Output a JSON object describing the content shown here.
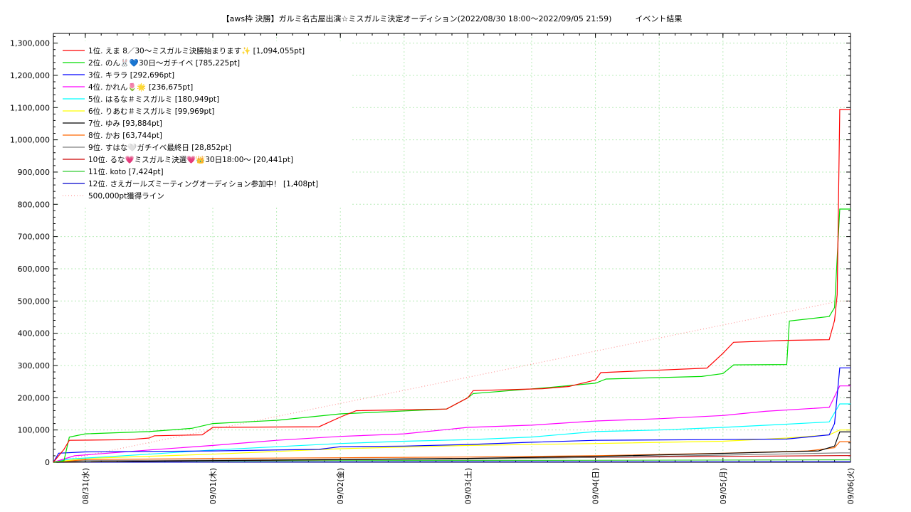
{
  "chart_data": {
    "type": "line",
    "title": "【aws枠 決勝】ガルミ名古屋出演☆ミスガルミ決定オーディション(2022/08/30 18:00〜2022/09/05 21:59)　　　イベント結果",
    "ylim": [
      0,
      1330000
    ],
    "xlim": [
      "2022-08-30 18:00",
      "2022-09-06 00:00"
    ],
    "grid": true,
    "legend_position": "top-left",
    "y_ticks": [
      "0",
      "100,000",
      "200,000",
      "300,000",
      "400,000",
      "500,000",
      "600,000",
      "700,000",
      "800,000",
      "900,000",
      "1,000,000",
      "1,100,000",
      "1,200,000",
      "1,300,000"
    ],
    "x_ticks": [
      {
        "label": "08/31(水)",
        "x": "2022-08-31 00:00"
      },
      {
        "label": "09/01(木)",
        "x": "2022-09-01 00:00"
      },
      {
        "label": "09/02(金)",
        "x": "2022-09-02 00:00"
      },
      {
        "label": "09/03(土)",
        "x": "2022-09-03 00:00"
      },
      {
        "label": "09/04(日)",
        "x": "2022-09-04 00:00"
      },
      {
        "label": "09/05(月)",
        "x": "2022-09-05 00:00"
      },
      {
        "label": "09/06(火)",
        "x": "2022-09-06 00:00"
      }
    ],
    "series": [
      {
        "name": "1位. えま 8／30〜ミスガルミ決勝始まります✨ [1,094,055pt]",
        "color": "#ff0000",
        "dash": false,
        "points": [
          [
            "2022-08-30 18:00",
            0
          ],
          [
            "2022-08-30 20:00",
            40000
          ],
          [
            "2022-08-30 21:00",
            68000
          ],
          [
            "2022-08-31 08:00",
            70000
          ],
          [
            "2022-08-31 12:00",
            75000
          ],
          [
            "2022-08-31 13:00",
            82000
          ],
          [
            "2022-08-31 22:00",
            85000
          ],
          [
            "2022-09-01 00:00",
            108000
          ],
          [
            "2022-09-01 20:00",
            110000
          ],
          [
            "2022-09-02 00:00",
            140000
          ],
          [
            "2022-09-02 03:00",
            160000
          ],
          [
            "2022-09-02 20:00",
            165000
          ],
          [
            "2022-09-03 00:00",
            200000
          ],
          [
            "2022-09-03 01:00",
            222000
          ],
          [
            "2022-09-03 14:00",
            228000
          ],
          [
            "2022-09-03 19:00",
            235000
          ],
          [
            "2022-09-04 00:00",
            255000
          ],
          [
            "2022-09-04 01:00",
            278000
          ],
          [
            "2022-09-04 21:00",
            292000
          ],
          [
            "2022-09-05 00:00",
            338000
          ],
          [
            "2022-09-05 02:00",
            372000
          ],
          [
            "2022-09-05 12:00",
            378000
          ],
          [
            "2022-09-05 20:00",
            380000
          ],
          [
            "2022-09-05 21:00",
            440000
          ],
          [
            "2022-09-05 21:30",
            520000
          ],
          [
            "2022-09-05 21:59",
            1094055
          ],
          [
            "2022-09-06 00:00",
            1094055
          ]
        ]
      },
      {
        "name": "2位. のん🐰💙30日〜ガチイベ [785,225pt]",
        "color": "#00dd00",
        "dash": false,
        "points": [
          [
            "2022-08-30 18:00",
            0
          ],
          [
            "2022-08-30 20:00",
            5000
          ],
          [
            "2022-08-30 21:00",
            78000
          ],
          [
            "2022-08-31 00:00",
            88000
          ],
          [
            "2022-08-31 12:00",
            95000
          ],
          [
            "2022-08-31 20:00",
            105000
          ],
          [
            "2022-09-01 00:00",
            120000
          ],
          [
            "2022-09-01 12:00",
            130000
          ],
          [
            "2022-09-02 00:00",
            150000
          ],
          [
            "2022-09-02 20:00",
            165000
          ],
          [
            "2022-09-03 00:00",
            200000
          ],
          [
            "2022-09-03 01:00",
            213000
          ],
          [
            "2022-09-03 14:00",
            230000
          ],
          [
            "2022-09-04 00:00",
            245000
          ],
          [
            "2022-09-04 02:00",
            258000
          ],
          [
            "2022-09-04 20:00",
            266000
          ],
          [
            "2022-09-05 00:00",
            275000
          ],
          [
            "2022-09-05 02:00",
            302000
          ],
          [
            "2022-09-05 12:00",
            303000
          ],
          [
            "2022-09-05 12:30",
            438000
          ],
          [
            "2022-09-05 20:00",
            452000
          ],
          [
            "2022-09-05 21:00",
            480000
          ],
          [
            "2022-09-05 21:59",
            785225
          ],
          [
            "2022-09-06 00:00",
            785225
          ]
        ]
      },
      {
        "name": "3位. キララ [292,696pt]",
        "color": "#0000ff",
        "dash": false,
        "points": [
          [
            "2022-08-30 18:00",
            0
          ],
          [
            "2022-08-30 19:00",
            28000
          ],
          [
            "2022-08-31 00:00",
            32000
          ],
          [
            "2022-09-01 00:00",
            35000
          ],
          [
            "2022-09-01 20:00",
            40000
          ],
          [
            "2022-09-02 00:00",
            48000
          ],
          [
            "2022-09-02 12:00",
            50000
          ],
          [
            "2022-09-03 00:00",
            55000
          ],
          [
            "2022-09-03 12:00",
            62000
          ],
          [
            "2022-09-04 00:00",
            68000
          ],
          [
            "2022-09-04 20:00",
            70000
          ],
          [
            "2022-09-05 12:00",
            72000
          ],
          [
            "2022-09-05 20:00",
            85000
          ],
          [
            "2022-09-05 21:00",
            120000
          ],
          [
            "2022-09-05 21:59",
            292696
          ],
          [
            "2022-09-06 00:00",
            292696
          ]
        ]
      },
      {
        "name": "4位. かれん🌷🌟 [236,675pt]",
        "color": "#ff00ff",
        "dash": false,
        "points": [
          [
            "2022-08-30 18:00",
            0
          ],
          [
            "2022-08-30 22:00",
            20000
          ],
          [
            "2022-08-31 12:00",
            38000
          ],
          [
            "2022-09-01 00:00",
            52000
          ],
          [
            "2022-09-01 12:00",
            68000
          ],
          [
            "2022-09-02 00:00",
            80000
          ],
          [
            "2022-09-02 12:00",
            88000
          ],
          [
            "2022-09-03 00:00",
            108000
          ],
          [
            "2022-09-03 12:00",
            115000
          ],
          [
            "2022-09-04 00:00",
            128000
          ],
          [
            "2022-09-04 12:00",
            135000
          ],
          [
            "2022-09-05 00:00",
            145000
          ],
          [
            "2022-09-05 08:00",
            158000
          ],
          [
            "2022-09-05 20:00",
            170000
          ],
          [
            "2022-09-05 21:59",
            236675
          ],
          [
            "2022-09-06 00:00",
            236675
          ]
        ]
      },
      {
        "name": "5位. はるな＃ミスガルミ [180,949pt]",
        "color": "#00ffff",
        "dash": false,
        "points": [
          [
            "2022-08-30 18:00",
            0
          ],
          [
            "2022-08-30 21:00",
            10000
          ],
          [
            "2022-08-31 12:00",
            25000
          ],
          [
            "2022-09-01 00:00",
            38000
          ],
          [
            "2022-09-01 12:00",
            48000
          ],
          [
            "2022-09-02 00:00",
            58000
          ],
          [
            "2022-09-02 12:00",
            65000
          ],
          [
            "2022-09-03 00:00",
            70000
          ],
          [
            "2022-09-03 12:00",
            78000
          ],
          [
            "2022-09-04 00:00",
            95000
          ],
          [
            "2022-09-04 12:00",
            100000
          ],
          [
            "2022-09-05 00:00",
            108000
          ],
          [
            "2022-09-05 12:00",
            118000
          ],
          [
            "2022-09-05 20:00",
            125000
          ],
          [
            "2022-09-05 21:59",
            180949
          ],
          [
            "2022-09-06 00:00",
            180949
          ]
        ]
      },
      {
        "name": "6位. りあむ＃ミスガルミ [99,969pt]",
        "color": "#ffff00",
        "dash": false,
        "points": [
          [
            "2022-08-30 18:00",
            0
          ],
          [
            "2022-08-31 00:00",
            12000
          ],
          [
            "2022-09-01 00:00",
            25000
          ],
          [
            "2022-09-02 00:00",
            42000
          ],
          [
            "2022-09-03 00:00",
            52000
          ],
          [
            "2022-09-04 00:00",
            58000
          ],
          [
            "2022-09-05 00:00",
            65000
          ],
          [
            "2022-09-05 12:00",
            75000
          ],
          [
            "2022-09-05 20:00",
            85000
          ],
          [
            "2022-09-05 21:59",
            99969
          ],
          [
            "2022-09-06 00:00",
            99969
          ]
        ]
      },
      {
        "name": "7位. ゆみ [93,884pt]",
        "color": "#000000",
        "dash": false,
        "points": [
          [
            "2022-08-30 18:00",
            0
          ],
          [
            "2022-09-01 00:00",
            5000
          ],
          [
            "2022-09-03 00:00",
            12000
          ],
          [
            "2022-09-04 00:00",
            18000
          ],
          [
            "2022-09-04 18:00",
            25000
          ],
          [
            "2022-09-05 18:00",
            35000
          ],
          [
            "2022-09-05 21:00",
            50000
          ],
          [
            "2022-09-05 21:59",
            93884
          ],
          [
            "2022-09-06 00:00",
            93884
          ]
        ]
      },
      {
        "name": "8位. かお [63,744pt]",
        "color": "#ff6600",
        "dash": false,
        "points": [
          [
            "2022-08-30 18:00",
            0
          ],
          [
            "2022-08-31 00:00",
            8000
          ],
          [
            "2022-09-01 00:00",
            12000
          ],
          [
            "2022-09-02 00:00",
            14000
          ],
          [
            "2022-09-03 00:00",
            16000
          ],
          [
            "2022-09-04 00:00",
            20000
          ],
          [
            "2022-09-05 00:00",
            28000
          ],
          [
            "2022-09-05 16:00",
            35000
          ],
          [
            "2022-09-05 21:00",
            45000
          ],
          [
            "2022-09-05 21:59",
            63744
          ],
          [
            "2022-09-06 00:00",
            63744
          ]
        ]
      },
      {
        "name": "9位. すはな🤍ガチイベ最終日 [28,852pt]",
        "color": "#808080",
        "dash": false,
        "points": [
          [
            "2022-08-30 18:00",
            0
          ],
          [
            "2022-08-31 00:00",
            5000
          ],
          [
            "2022-09-02 00:00",
            8000
          ],
          [
            "2022-09-03 00:00",
            10000
          ],
          [
            "2022-09-04 00:00",
            15000
          ],
          [
            "2022-09-05 00:00",
            22000
          ],
          [
            "2022-09-05 21:59",
            28852
          ],
          [
            "2022-09-06 00:00",
            28852
          ]
        ]
      },
      {
        "name": "10位. るな💗ミスガルミ決選💗👑30日18:00〜 [20,441pt]",
        "color": "#cc0000",
        "dash": false,
        "points": [
          [
            "2022-08-30 18:00",
            0
          ],
          [
            "2022-09-01 00:00",
            5000
          ],
          [
            "2022-09-02 00:00",
            8000
          ],
          [
            "2022-09-03 00:00",
            12000
          ],
          [
            "2022-09-04 00:00",
            15000
          ],
          [
            "2022-09-05 00:00",
            18000
          ],
          [
            "2022-09-05 21:59",
            20441
          ],
          [
            "2022-09-06 00:00",
            20441
          ]
        ]
      },
      {
        "name": "11位. koto [7,424pt]",
        "color": "#33cc33",
        "dash": false,
        "points": [
          [
            "2022-08-30 18:00",
            0
          ],
          [
            "2022-08-31 12:00",
            3000
          ],
          [
            "2022-09-02 00:00",
            5000
          ],
          [
            "2022-09-04 00:00",
            6000
          ],
          [
            "2022-09-05 21:59",
            7424
          ],
          [
            "2022-09-06 00:00",
            7424
          ]
        ]
      },
      {
        "name": "12位. さえガールズミーティングオーディション参加中！ [1,408pt]",
        "color": "#0000cc",
        "dash": false,
        "points": [
          [
            "2022-08-30 18:00",
            0
          ],
          [
            "2022-09-01 00:00",
            500
          ],
          [
            "2022-09-03 00:00",
            1000
          ],
          [
            "2022-09-05 21:59",
            1408
          ],
          [
            "2022-09-06 00:00",
            1408
          ]
        ]
      },
      {
        "name": "500,000pt獲得ライン",
        "color": "#ff9999",
        "dash": true,
        "points": [
          [
            "2022-08-30 18:00",
            0
          ],
          [
            "2022-09-05 21:59",
            500000
          ],
          [
            "2022-09-06 00:00",
            500000
          ]
        ]
      }
    ]
  }
}
